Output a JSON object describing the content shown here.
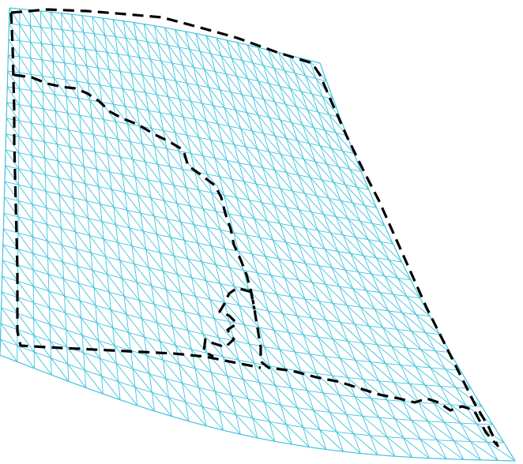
{
  "mesh": {
    "rows": 22,
    "cols": 30,
    "color": "#3ec3dc"
  },
  "overlay": {
    "color": "#000000"
  }
}
